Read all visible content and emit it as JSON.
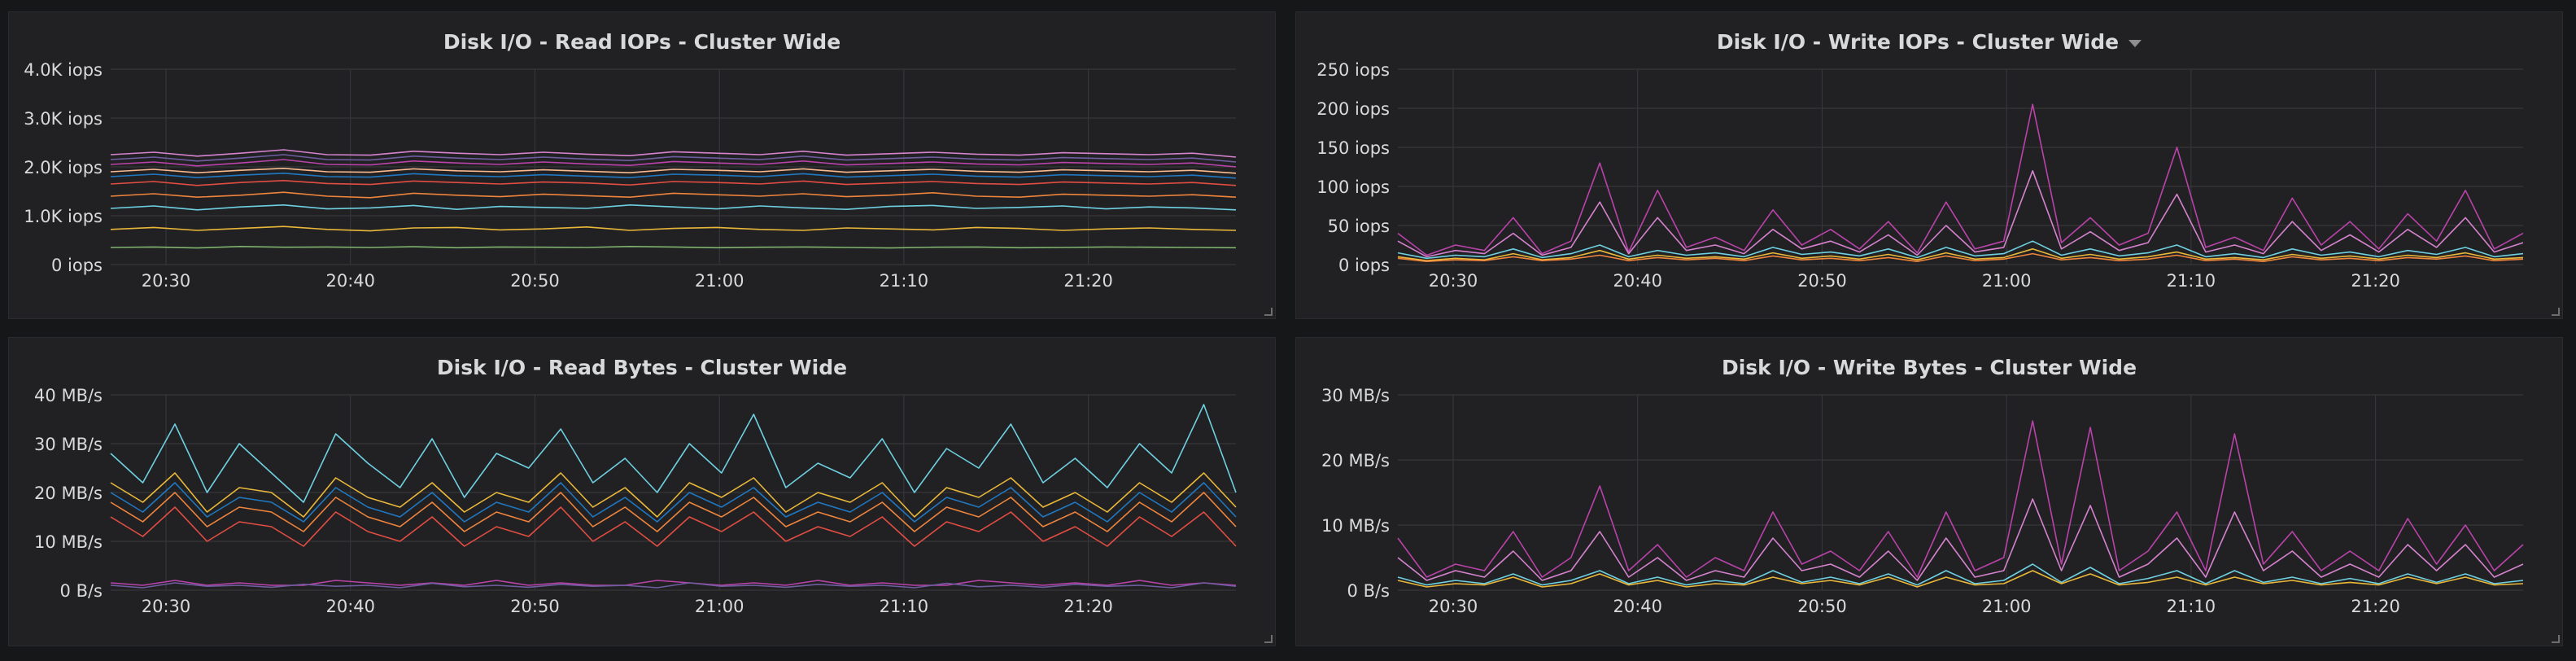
{
  "chart_data": [
    {
      "type": "line",
      "title": "Disk I/O - Read IOPs - Cluster Wide",
      "x_ticks": [
        "20:30",
        "20:40",
        "20:50",
        "21:00",
        "21:10",
        "21:20"
      ],
      "x_range_minutes": [
        1227,
        1288
      ],
      "y_ticks": [
        "0 iops",
        "1.0K iops",
        "2.0K iops",
        "3.0K iops",
        "4.0K iops"
      ],
      "ylim": [
        0,
        4000
      ],
      "grid": true,
      "series": [
        {
          "color": "#7eb26d",
          "values": [
            350,
            360,
            340,
            370,
            355,
            360,
            350,
            365,
            345,
            360,
            355,
            350,
            370,
            360,
            345,
            355,
            360,
            350,
            340,
            355,
            360,
            345,
            350,
            360,
            355,
            350,
            345
          ]
        },
        {
          "color": "#eab839",
          "values": [
            720,
            760,
            700,
            740,
            780,
            720,
            690,
            750,
            760,
            710,
            730,
            770,
            700,
            740,
            760,
            720,
            700,
            750,
            730,
            710,
            760,
            740,
            700,
            730,
            750,
            720,
            700
          ]
        },
        {
          "color": "#6ed0e0",
          "values": [
            1150,
            1200,
            1120,
            1180,
            1220,
            1140,
            1160,
            1210,
            1130,
            1190,
            1170,
            1150,
            1220,
            1180,
            1140,
            1200,
            1160,
            1130,
            1190,
            1210,
            1150,
            1170,
            1200,
            1140,
            1180,
            1160,
            1120
          ]
        },
        {
          "color": "#ef843c",
          "values": [
            1400,
            1450,
            1380,
            1420,
            1480,
            1400,
            1370,
            1460,
            1420,
            1390,
            1440,
            1410,
            1380,
            1460,
            1430,
            1400,
            1450,
            1390,
            1420,
            1470,
            1400,
            1380,
            1440,
            1420,
            1400,
            1430,
            1380
          ]
        },
        {
          "color": "#e24d42",
          "values": [
            1650,
            1700,
            1620,
            1680,
            1720,
            1660,
            1640,
            1710,
            1680,
            1650,
            1690,
            1670,
            1630,
            1700,
            1680,
            1650,
            1710,
            1640,
            1670,
            1700,
            1660,
            1640,
            1690,
            1670,
            1650,
            1680,
            1620
          ]
        },
        {
          "color": "#1f78c1",
          "values": [
            1800,
            1850,
            1780,
            1830,
            1870,
            1800,
            1790,
            1860,
            1820,
            1800,
            1840,
            1810,
            1780,
            1850,
            1830,
            1800,
            1860,
            1790,
            1820,
            1850,
            1810,
            1790,
            1840,
            1820,
            1800,
            1830,
            1770
          ]
        },
        {
          "color": "#f9ba8f",
          "values": [
            1900,
            1950,
            1880,
            1930,
            1970,
            1900,
            1890,
            1960,
            1920,
            1900,
            1940,
            1910,
            1880,
            1950,
            1930,
            1900,
            1960,
            1890,
            1920,
            1950,
            1910,
            1890,
            1940,
            1920,
            1900,
            1930,
            1870
          ]
        },
        {
          "color": "#ba43a9",
          "values": [
            2050,
            2100,
            2020,
            2080,
            2150,
            2050,
            2040,
            2120,
            2080,
            2050,
            2100,
            2060,
            2030,
            2110,
            2080,
            2050,
            2120,
            2040,
            2070,
            2100,
            2060,
            2040,
            2090,
            2070,
            2050,
            2080,
            2000
          ]
        },
        {
          "color": "#705da0",
          "values": [
            2150,
            2200,
            2120,
            2180,
            2250,
            2150,
            2140,
            2220,
            2180,
            2150,
            2200,
            2160,
            2130,
            2210,
            2180,
            2150,
            2220,
            2140,
            2170,
            2200,
            2160,
            2140,
            2190,
            2170,
            2150,
            2180,
            2100
          ]
        },
        {
          "color": "#d683ce",
          "values": [
            2250,
            2300,
            2220,
            2280,
            2350,
            2250,
            2240,
            2320,
            2280,
            2250,
            2300,
            2260,
            2230,
            2310,
            2280,
            2250,
            2320,
            2240,
            2270,
            2300,
            2260,
            2240,
            2290,
            2270,
            2250,
            2280,
            2200
          ]
        }
      ]
    },
    {
      "type": "line",
      "title": "Disk I/O - Write IOPs - Cluster Wide",
      "x_ticks": [
        "20:30",
        "20:40",
        "20:50",
        "21:00",
        "21:10",
        "21:20"
      ],
      "x_range_minutes": [
        1227,
        1288
      ],
      "y_ticks": [
        "0 iops",
        "50 iops",
        "100 iops",
        "150 iops",
        "200 iops",
        "250 iops"
      ],
      "ylim": [
        0,
        250
      ],
      "grid": true,
      "series": [
        {
          "color": "#ba43a9",
          "values": [
            40,
            12,
            25,
            18,
            60,
            14,
            30,
            130,
            16,
            95,
            22,
            35,
            18,
            70,
            25,
            45,
            20,
            55,
            15,
            80,
            20,
            30,
            205,
            28,
            60,
            25,
            40,
            150,
            22,
            35,
            18,
            85,
            25,
            55,
            20,
            65,
            30,
            95,
            20,
            40
          ]
        },
        {
          "color": "#d683ce",
          "values": [
            30,
            10,
            18,
            14,
            40,
            12,
            22,
            80,
            14,
            60,
            18,
            25,
            14,
            45,
            20,
            30,
            16,
            38,
            12,
            50,
            16,
            22,
            120,
            20,
            42,
            18,
            28,
            90,
            16,
            25,
            14,
            55,
            18,
            38,
            16,
            45,
            22,
            60,
            16,
            28
          ]
        },
        {
          "color": "#6ed0e0",
          "values": [
            15,
            8,
            12,
            10,
            20,
            9,
            14,
            25,
            10,
            18,
            12,
            15,
            10,
            22,
            13,
            16,
            11,
            20,
            9,
            22,
            11,
            14,
            30,
            12,
            20,
            11,
            15,
            25,
            10,
            14,
            9,
            20,
            12,
            16,
            10,
            18,
            13,
            22,
            10,
            14
          ]
        },
        {
          "color": "#eab839",
          "values": [
            10,
            5,
            8,
            6,
            14,
            6,
            9,
            18,
            7,
            12,
            8,
            10,
            7,
            15,
            8,
            11,
            7,
            13,
            6,
            15,
            7,
            9,
            20,
            8,
            13,
            7,
            10,
            16,
            7,
            9,
            6,
            13,
            8,
            11,
            7,
            12,
            9,
            15,
            7,
            9
          ]
        },
        {
          "color": "#ef843c",
          "values": [
            8,
            4,
            6,
            5,
            10,
            5,
            7,
            12,
            5,
            9,
            6,
            8,
            5,
            11,
            6,
            8,
            5,
            9,
            4,
            11,
            5,
            7,
            14,
            6,
            9,
            5,
            7,
            12,
            5,
            7,
            4,
            10,
            6,
            8,
            5,
            9,
            7,
            11,
            5,
            7
          ]
        }
      ]
    },
    {
      "type": "line",
      "title": "Disk I/O - Read Bytes - Cluster Wide",
      "x_ticks": [
        "20:30",
        "20:40",
        "20:50",
        "21:00",
        "21:10",
        "21:20"
      ],
      "x_range_minutes": [
        1227,
        1288
      ],
      "y_ticks": [
        "0 B/s",
        "10 MB/s",
        "20 MB/s",
        "30 MB/s",
        "40 MB/s"
      ],
      "ylim": [
        0,
        40
      ],
      "grid": true,
      "series": [
        {
          "color": "#6ed0e0",
          "values": [
            28,
            22,
            34,
            20,
            30,
            24,
            18,
            32,
            26,
            21,
            31,
            19,
            28,
            25,
            33,
            22,
            27,
            20,
            30,
            24,
            36,
            21,
            26,
            23,
            31,
            20,
            29,
            25,
            34,
            22,
            27,
            21,
            30,
            24,
            38,
            20
          ]
        },
        {
          "color": "#eab839",
          "values": [
            22,
            18,
            24,
            16,
            21,
            20,
            15,
            23,
            19,
            17,
            22,
            16,
            20,
            18,
            24,
            17,
            21,
            15,
            22,
            19,
            23,
            16,
            20,
            18,
            22,
            15,
            21,
            19,
            23,
            17,
            20,
            16,
            22,
            18,
            24,
            17
          ]
        },
        {
          "color": "#ef843c",
          "values": [
            18,
            14,
            20,
            13,
            17,
            16,
            12,
            19,
            15,
            13,
            18,
            12,
            16,
            14,
            20,
            13,
            17,
            12,
            18,
            15,
            19,
            13,
            16,
            14,
            18,
            12,
            17,
            15,
            19,
            13,
            16,
            12,
            18,
            14,
            20,
            13
          ]
        },
        {
          "color": "#e24d42",
          "values": [
            15,
            11,
            17,
            10,
            14,
            13,
            9,
            16,
            12,
            10,
            15,
            9,
            13,
            11,
            17,
            10,
            14,
            9,
            15,
            12,
            16,
            10,
            13,
            11,
            15,
            9,
            14,
            12,
            16,
            10,
            13,
            9,
            15,
            11,
            16,
            9
          ]
        },
        {
          "color": "#1f78c1",
          "values": [
            20,
            16,
            22,
            15,
            19,
            18,
            14,
            21,
            17,
            15,
            20,
            14,
            18,
            16,
            22,
            15,
            19,
            14,
            20,
            17,
            21,
            15,
            18,
            16,
            20,
            14,
            19,
            17,
            21,
            15,
            18,
            14,
            20,
            16,
            22,
            15
          ]
        },
        {
          "color": "#ba43a9",
          "values": [
            1.5,
            1,
            2,
            1,
            1.5,
            1,
            1,
            2,
            1.5,
            1,
            1.5,
            1,
            2,
            1,
            1.5,
            1,
            1,
            2,
            1.5,
            1,
            1.5,
            1,
            2,
            1,
            1.5,
            1,
            1,
            2,
            1.5,
            1,
            1.5,
            1,
            2,
            1,
            1.5,
            1
          ]
        },
        {
          "color": "#705da0",
          "values": [
            1,
            0.5,
            1.5,
            0.8,
            1,
            0.6,
            1.2,
            0.8,
            1,
            0.5,
            1.4,
            0.7,
            1,
            0.6,
            1.2,
            0.8,
            1,
            0.5,
            1.5,
            0.8,
            1,
            0.6,
            1.2,
            0.8,
            1,
            0.5,
            1.4,
            0.7,
            1,
            0.6,
            1.2,
            0.8,
            1,
            0.5,
            1.5,
            0.8
          ]
        }
      ]
    },
    {
      "type": "line",
      "title": "Disk I/O - Write Bytes - Cluster Wide",
      "x_ticks": [
        "20:30",
        "20:40",
        "20:50",
        "21:00",
        "21:10",
        "21:20"
      ],
      "x_range_minutes": [
        1227,
        1288
      ],
      "y_ticks": [
        "0 B/s",
        "10 MB/s",
        "20 MB/s",
        "30 MB/s"
      ],
      "ylim": [
        0,
        30
      ],
      "grid": true,
      "series": [
        {
          "color": "#ba43a9",
          "values": [
            8,
            2,
            4,
            3,
            9,
            2,
            5,
            16,
            3,
            7,
            2,
            5,
            3,
            12,
            4,
            6,
            3,
            9,
            2,
            12,
            3,
            5,
            26,
            4,
            25,
            3,
            6,
            12,
            3,
            24,
            4,
            9,
            3,
            6,
            3,
            11,
            4,
            10,
            3,
            7
          ]
        },
        {
          "color": "#d683ce",
          "values": [
            5,
            1.5,
            3,
            2,
            6,
            1.5,
            3,
            9,
            2,
            5,
            1.5,
            3,
            2,
            8,
            3,
            4,
            2,
            6,
            1.5,
            8,
            2,
            3,
            14,
            3,
            13,
            2,
            4,
            8,
            2,
            12,
            3,
            6,
            2,
            4,
            2,
            7,
            3,
            7,
            2,
            4
          ]
        },
        {
          "color": "#6ed0e0",
          "values": [
            2,
            0.8,
            1.5,
            1,
            2.5,
            0.8,
            1.5,
            3,
            1,
            2,
            0.8,
            1.5,
            1,
            3,
            1.2,
            2,
            1,
            2.5,
            0.8,
            3,
            1,
            1.5,
            4,
            1.2,
            3.5,
            1,
            1.8,
            3,
            1,
            3,
            1.2,
            2,
            1,
            1.8,
            1,
            2.5,
            1.2,
            2.5,
            1,
            1.5
          ]
        },
        {
          "color": "#eab839",
          "values": [
            1.5,
            0.5,
            1,
            0.8,
            2,
            0.5,
            1,
            2.5,
            0.8,
            1.5,
            0.5,
            1,
            0.8,
            2,
            1,
            1.5,
            0.8,
            2,
            0.5,
            2,
            0.8,
            1,
            3,
            1,
            2.5,
            0.8,
            1.2,
            2,
            0.8,
            2,
            1,
            1.5,
            0.8,
            1.2,
            0.8,
            2,
            1,
            2,
            0.8,
            1
          ]
        }
      ]
    }
  ]
}
